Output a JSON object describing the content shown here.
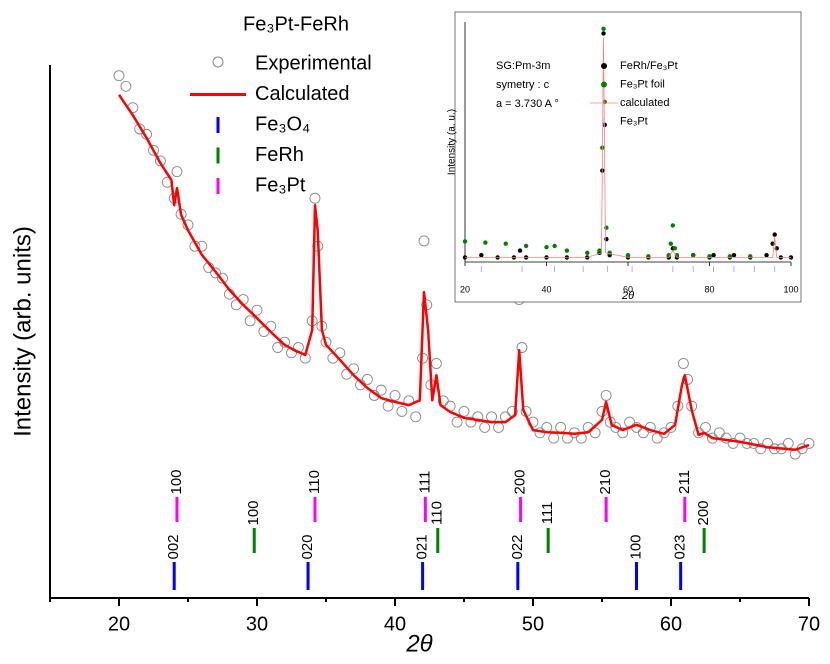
{
  "chart_data": [
    {
      "type": "line",
      "title": "Fe₃Pt-FeRh",
      "xlabel": "2θ",
      "ylabel": "Intensity (arb. units)",
      "xlim": [
        15,
        70
      ],
      "xticks": [
        20,
        30,
        40,
        50,
        60,
        70
      ],
      "xminorticks": [
        15,
        25,
        35,
        45,
        55,
        65
      ],
      "ylim": [
        0,
        100
      ],
      "series": [
        {
          "name": "Experimental",
          "style": "markers",
          "marker": "open-circle",
          "color": "#888888",
          "x": [
            20,
            20.5,
            21,
            21.5,
            22,
            22.5,
            23,
            23.5,
            24,
            24.2,
            24.5,
            25,
            25.5,
            26,
            26.5,
            27,
            27.5,
            28,
            28.5,
            29,
            29.5,
            30,
            30.5,
            31,
            31.5,
            32,
            32.5,
            33,
            33.5,
            34,
            34.2,
            34.4,
            34.7,
            35,
            35.5,
            36,
            36.5,
            37,
            37.5,
            38,
            38.5,
            39,
            39.5,
            40,
            40.5,
            41,
            41.5,
            42,
            42.1,
            42.3,
            42.6,
            43,
            43.5,
            44,
            44.5,
            45,
            45.5,
            46,
            46.5,
            47,
            47.5,
            48,
            48.5,
            49,
            49.2,
            49.5,
            50,
            50.5,
            51,
            51.5,
            52,
            52.5,
            53,
            53.5,
            54,
            54.5,
            55,
            55.3,
            55.6,
            56,
            56.5,
            57,
            57.5,
            58,
            58.5,
            59,
            59.5,
            60,
            60.5,
            60.9,
            61.2,
            61.5,
            62,
            62.5,
            63,
            63.5,
            64,
            64.5,
            65,
            65.5,
            66,
            66.5,
            67,
            67.5,
            68,
            68.5,
            69,
            69.5,
            70
          ],
          "values": [
            98,
            96,
            92,
            88,
            87,
            84,
            82,
            78,
            75,
            80,
            72,
            70,
            66,
            66,
            62,
            61,
            60,
            57,
            55,
            56,
            52,
            54,
            50,
            51,
            47,
            48,
            46,
            47,
            45,
            52,
            75,
            66,
            51,
            48,
            45,
            46,
            42,
            43,
            40,
            41,
            38,
            39,
            36,
            38,
            35,
            37,
            34,
            45,
            67,
            55,
            40,
            44,
            37,
            36,
            33,
            35,
            33,
            34,
            32,
            34,
            32,
            34,
            35,
            56,
            47,
            35,
            33,
            31,
            32,
            30,
            32,
            30,
            31,
            30,
            32,
            31,
            35,
            38,
            33,
            32,
            31,
            33,
            32,
            31,
            32,
            30,
            31,
            32,
            36,
            44,
            41,
            36,
            31,
            32,
            30,
            31,
            30,
            29,
            30,
            29,
            29,
            28,
            29,
            28,
            28,
            29,
            27,
            28,
            29
          ]
        },
        {
          "name": "Calculated",
          "style": "line",
          "color": "#ff0000",
          "x": [
            20,
            21,
            22,
            23,
            23.8,
            24,
            24.2,
            24.5,
            25,
            26,
            27,
            28,
            29,
            30,
            31,
            32,
            32.7,
            33.5,
            34,
            34.2,
            34.4,
            34.7,
            35,
            36,
            37,
            38,
            39,
            40,
            41,
            41.8,
            42.1,
            42.4,
            42.7,
            43,
            43.3,
            44,
            45,
            46,
            47,
            48,
            48.7,
            49,
            49.3,
            50,
            51,
            52,
            53,
            54,
            55,
            55.3,
            55.7,
            56.5,
            57.5,
            58.5,
            59.5,
            60.3,
            60.8,
            61,
            61.5,
            62,
            62.4,
            63,
            65,
            67,
            69,
            70
          ],
          "values": [
            94.4,
            90.6,
            86.3,
            81.6,
            78.4,
            73.7,
            76.9,
            71.9,
            69,
            64.4,
            61.2,
            57.8,
            55,
            52.5,
            49.9,
            47.5,
            46.5,
            45.6,
            50.3,
            73.7,
            69,
            50.3,
            47.5,
            44.7,
            41.8,
            39.4,
            37.5,
            36.8,
            36.2,
            37.1,
            57.4,
            50.3,
            37.1,
            41.8,
            36.2,
            34.9,
            33.8,
            33.4,
            33,
            33,
            34.3,
            46.5,
            35.3,
            31.5,
            31.1,
            31,
            30.8,
            31.1,
            33.4,
            36.8,
            32.5,
            31.5,
            32.5,
            31.5,
            30.8,
            32.5,
            40,
            41.8,
            35.3,
            30.6,
            31,
            30,
            29.3,
            28.3,
            27.8,
            28.7
          ]
        }
      ],
      "reflections": [
        {
          "name": "Fe₃O₄",
          "color": "#0000ff",
          "x": [
            24.0,
            33.7,
            42.0,
            48.9,
            57.5,
            60.7
          ],
          "labels": [
            "002",
            "020",
            "021",
            "022",
            "100",
            "023"
          ]
        },
        {
          "name": "FeRh",
          "color": "#008000",
          "x": [
            29.8,
            43.1,
            51.1,
            62.4
          ],
          "labels": [
            "100",
            "110",
            "111",
            "200"
          ]
        },
        {
          "name": "Fe₃Pt",
          "color": "#ff00ff",
          "x": [
            24.2,
            34.2,
            42.2,
            49.1,
            55.3,
            61.0
          ],
          "labels": [
            "100",
            "110",
            "111",
            "200",
            "210",
            "211"
          ]
        }
      ]
    },
    {
      "type": "scatter",
      "xlabel": "2θ",
      "ylabel": "Intensity (a. u.)",
      "annotations": [
        "SG:Pm-3m",
        "symetry : c",
        "a = 3.730 A °"
      ],
      "xlim": [
        20,
        100
      ],
      "xticks": [
        20,
        40,
        60,
        80,
        100
      ],
      "ylim": [
        0,
        105
      ],
      "series": [
        {
          "name": "FeRh/Fe₃Pt",
          "style": "markers",
          "marker": "dot",
          "color": "#000000",
          "x": [
            20,
            24,
            28,
            32,
            33.5,
            35,
            40,
            45,
            50,
            53,
            53.7,
            54,
            54.3,
            54.7,
            55.5,
            60,
            65,
            70,
            71,
            72,
            76,
            80,
            81,
            85,
            86,
            90,
            94,
            95.5,
            96,
            96.5,
            97.5,
            100
          ],
          "values": [
            2,
            3,
            2,
            2,
            5,
            2,
            2,
            2,
            2,
            4,
            40,
            100,
            60,
            10,
            3,
            2,
            2,
            2,
            6,
            2,
            3,
            2,
            3,
            2,
            3,
            2,
            3,
            8,
            12,
            6,
            2,
            2
          ]
        },
        {
          "name": "Fe₃Pt foil",
          "style": "markers",
          "marker": "dot",
          "color": "#008000",
          "x": [
            20,
            25,
            30,
            35,
            40,
            42,
            45,
            50,
            53,
            53.7,
            54,
            54.3,
            54.7,
            55.5,
            60,
            65,
            70,
            70.5,
            71,
            71.5,
            72,
            76,
            80,
            85,
            90
          ],
          "values": [
            9,
            8.5,
            8,
            7,
            6.5,
            7,
            5,
            4,
            5,
            50,
            102,
            70,
            15,
            4,
            3,
            2.5,
            3,
            8,
            16,
            6,
            3,
            3,
            2.5,
            2.5,
            2.5
          ]
        },
        {
          "name": "calculated",
          "style": "line",
          "color": "#ff8080",
          "x": [
            20,
            50,
            53.5,
            54,
            54.5,
            60,
            70,
            71,
            72,
            95.5,
            96,
            96.5,
            100
          ],
          "values": [
            2,
            2,
            4,
            98,
            4,
            2,
            2,
            5,
            2,
            2,
            11,
            2,
            2
          ]
        }
      ],
      "reflections": [
        {
          "name": "Fe₃Pt",
          "color": "#9999ff",
          "x": [
            24,
            34,
            42,
            49,
            55,
            61,
            71,
            76,
            81,
            86,
            91,
            96
          ]
        }
      ]
    }
  ]
}
